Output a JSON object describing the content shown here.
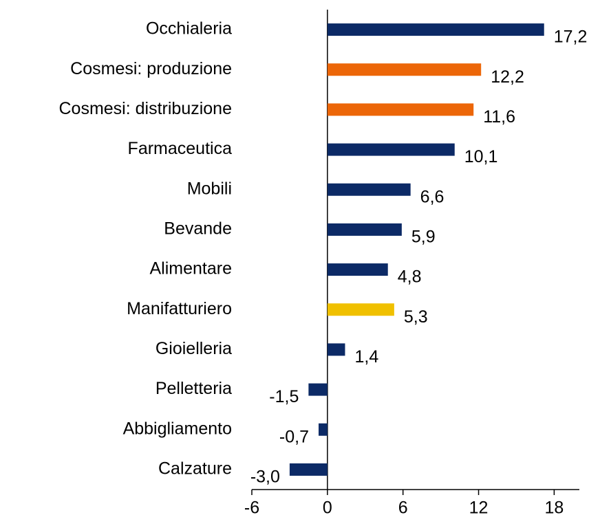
{
  "chart_data": {
    "type": "bar",
    "orientation": "horizontal",
    "categories": [
      "Occhialeria",
      "Cosmesi: produzione",
      "Cosmesi: distribuzione",
      "Farmaceutica",
      "Mobili",
      "Bevande",
      "Alimentare",
      "Manifatturiero",
      "Gioielleria",
      "Pelletteria",
      "Abbigliamento",
      "Calzature"
    ],
    "values": [
      17.2,
      12.2,
      11.6,
      10.1,
      6.6,
      5.9,
      4.8,
      5.3,
      1.4,
      -1.5,
      -0.7,
      -3.0
    ],
    "value_labels": [
      "17,2",
      "12,2",
      "11,6",
      "10,1",
      "6,6",
      "5,9",
      "4,8",
      "5,3",
      "1,4",
      "-1,5",
      "-0,7",
      "-3,0"
    ],
    "colors": [
      "#0c2a66",
      "#ec6608",
      "#ec6608",
      "#0c2a66",
      "#0c2a66",
      "#0c2a66",
      "#0c2a66",
      "#f0c000",
      "#0c2a66",
      "#0c2a66",
      "#0c2a66",
      "#0c2a66"
    ],
    "xlim": [
      -6,
      20
    ],
    "xticks": [
      -6,
      0,
      6,
      12,
      18
    ]
  }
}
